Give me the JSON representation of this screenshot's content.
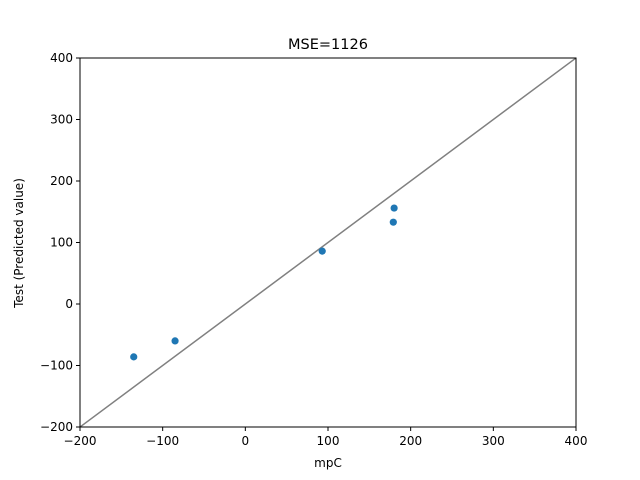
{
  "chart_data": {
    "type": "scatter",
    "title": "MSE=1126",
    "xlabel": "mpC",
    "ylabel": "Test (Predicted value)",
    "xlim": [
      -200,
      400
    ],
    "ylim": [
      -200,
      400
    ],
    "xticks": [
      "−200",
      "−100",
      "0",
      "100",
      "200",
      "300",
      "400"
    ],
    "xtick_values": [
      -200,
      -100,
      0,
      100,
      200,
      300,
      400
    ],
    "yticks": [
      "−200",
      "−100",
      "0",
      "100",
      "200",
      "300",
      "400"
    ],
    "ytick_values": [
      -200,
      -100,
      0,
      100,
      200,
      300,
      400
    ],
    "grid": false,
    "series": [
      {
        "color": "#1f77b4",
        "points": [
          {
            "x": -135,
            "y": -86
          },
          {
            "x": -85,
            "y": -60
          },
          {
            "x": 93,
            "y": 86
          },
          {
            "x": 179,
            "y": 133
          },
          {
            "x": 180,
            "y": 156
          }
        ]
      }
    ],
    "reference_line": {
      "from": [
        -200,
        -200
      ],
      "to": [
        400,
        400
      ],
      "color": "#808080"
    }
  }
}
